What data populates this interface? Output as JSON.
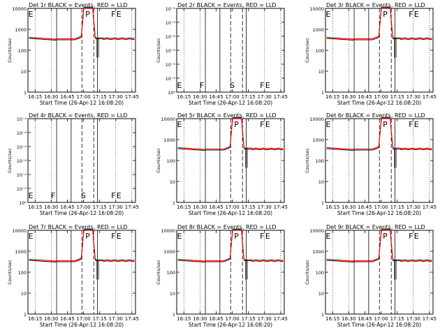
{
  "figure": {
    "xticks": [
      "16:15",
      "16:30",
      "16:45",
      "17:00",
      "17:15",
      "17:30",
      "17:45"
    ],
    "xlabel": "Start Time (26-Apr-12 16:08:20)",
    "ylabel": "Counts/sec"
  },
  "chart_data": [
    {
      "panel": "Det 1r",
      "title": "Det 1r BLACK = Events, RED = LLD",
      "type": "line",
      "scale": "log",
      "ylim": [
        1,
        10000
      ],
      "yticks": [
        "1",
        "10",
        "100",
        "1000",
        "10000"
      ],
      "flat": false,
      "markers": [
        {
          "label": "E",
          "x": "16:08"
        },
        {
          "label": "P",
          "x": "17:01"
        },
        {
          "label": "F",
          "x": "17:25"
        },
        {
          "label": "E",
          "x": "17:30"
        }
      ],
      "series": [
        {
          "color": "#000000"
        },
        {
          "color": "#ff0000"
        }
      ]
    },
    {
      "panel": "Det 2r",
      "title": "Det 2r BLACK = Events, RED = LLD",
      "type": "line",
      "scale": "log",
      "ylim": [
        1,
        1000000
      ],
      "yticks": [
        "10⁰",
        "10⁻²",
        "10⁻⁴",
        "10⁻⁶",
        "10⁻⁶",
        "10⁻⁴",
        "10⁻⁶"
      ],
      "flat": true,
      "markers": [
        {
          "label": "E",
          "x": "16:08"
        },
        {
          "label": "F",
          "x": "16:29"
        },
        {
          "label": "S",
          "x": "16:57"
        },
        {
          "label": "F",
          "x": "17:25"
        },
        {
          "label": "E",
          "x": "17:30"
        }
      ],
      "series": [
        {
          "color": "#000000"
        },
        {
          "color": "#ff0000"
        }
      ]
    },
    {
      "panel": "Det 3r",
      "title": "Det 3r BLACK = Events, RED = LLD",
      "type": "line",
      "scale": "log",
      "ylim": [
        1,
        10000
      ],
      "yticks": [
        "1",
        "10",
        "100",
        "1000",
        "10000"
      ],
      "flat": false,
      "markers": [
        {
          "label": "E",
          "x": "16:08"
        },
        {
          "label": "P",
          "x": "17:01"
        },
        {
          "label": "F",
          "x": "17:25"
        },
        {
          "label": "E",
          "x": "17:30"
        }
      ],
      "series": [
        {
          "color": "#000000"
        },
        {
          "color": "#ff0000"
        }
      ]
    },
    {
      "panel": "Det 4r",
      "title": "Det 4r BLACK = Events, RED = LLD",
      "type": "line",
      "scale": "log",
      "ylim": [
        1,
        1000000
      ],
      "yticks": [
        "10⁰",
        "10⁻⁵",
        "10⁻⁴",
        "10⁻⁶",
        "10⁻⁴",
        "10⁻⁶",
        "10⁻⁴"
      ],
      "flat": true,
      "markers": [
        {
          "label": "E",
          "x": "16:08"
        },
        {
          "label": "F",
          "x": "16:29"
        },
        {
          "label": "S",
          "x": "16:57"
        },
        {
          "label": "F",
          "x": "17:25"
        },
        {
          "label": "E",
          "x": "17:30"
        }
      ],
      "series": [
        {
          "color": "#000000"
        },
        {
          "color": "#ff0000"
        }
      ]
    },
    {
      "panel": "Det 5r",
      "title": "Det 5r BLACK = Events, RED = LLD",
      "type": "line",
      "scale": "log",
      "ylim": [
        1,
        10000
      ],
      "yticks": [
        "1",
        "10",
        "100",
        "1000",
        "10000"
      ],
      "flat": false,
      "markers": [
        {
          "label": "E",
          "x": "16:08"
        },
        {
          "label": "P",
          "x": "17:01"
        },
        {
          "label": "F",
          "x": "17:25"
        },
        {
          "label": "E",
          "x": "17:30"
        }
      ],
      "series": [
        {
          "color": "#000000"
        },
        {
          "color": "#ff0000"
        }
      ]
    },
    {
      "panel": "Det 6r",
      "title": "Det 6r BLACK = Events, RED = LLD",
      "type": "line",
      "scale": "log",
      "ylim": [
        1,
        10000
      ],
      "yticks": [
        "1",
        "10",
        "100",
        "1000",
        "10000"
      ],
      "flat": false,
      "markers": [
        {
          "label": "E",
          "x": "16:08"
        },
        {
          "label": "P",
          "x": "17:01"
        },
        {
          "label": "F",
          "x": "17:25"
        },
        {
          "label": "E",
          "x": "17:30"
        }
      ],
      "series": [
        {
          "color": "#000000"
        },
        {
          "color": "#ff0000"
        }
      ]
    },
    {
      "panel": "Det 7r",
      "title": "Det 7r BLACK = Events, RED = LLD",
      "type": "line",
      "scale": "log",
      "ylim": [
        1,
        10000
      ],
      "yticks": [
        "1",
        "10",
        "100",
        "1000",
        "10000"
      ],
      "flat": false,
      "markers": [
        {
          "label": "E",
          "x": "16:08"
        },
        {
          "label": "P",
          "x": "17:01"
        },
        {
          "label": "F",
          "x": "17:25"
        },
        {
          "label": "E",
          "x": "17:30"
        }
      ],
      "series": [
        {
          "color": "#000000"
        },
        {
          "color": "#ff0000"
        }
      ]
    },
    {
      "panel": "Det 8r",
      "title": "Det 8r BLACK = Events, RED = LLD",
      "type": "line",
      "scale": "log",
      "ylim": [
        1,
        10000
      ],
      "yticks": [
        "1",
        "10",
        "100",
        "1000",
        "10000"
      ],
      "flat": false,
      "markers": [
        {
          "label": "E",
          "x": "16:08"
        },
        {
          "label": "P",
          "x": "17:01"
        },
        {
          "label": "F",
          "x": "17:25"
        },
        {
          "label": "E",
          "x": "17:30"
        }
      ],
      "series": [
        {
          "color": "#000000"
        },
        {
          "color": "#ff0000"
        }
      ]
    },
    {
      "panel": "Det 9r",
      "title": "Det 9r BLACK = Events, RED = LLD",
      "type": "line",
      "scale": "log",
      "ylim": [
        1,
        10000
      ],
      "yticks": [
        "1",
        "10",
        "100",
        "1000",
        "10000"
      ],
      "flat": false,
      "markers": [
        {
          "label": "E",
          "x": "16:08"
        },
        {
          "label": "P",
          "x": "17:01"
        },
        {
          "label": "F",
          "x": "17:25"
        },
        {
          "label": "E",
          "x": "17:30"
        }
      ],
      "series": [
        {
          "color": "#000000"
        },
        {
          "color": "#ff0000"
        }
      ]
    }
  ]
}
